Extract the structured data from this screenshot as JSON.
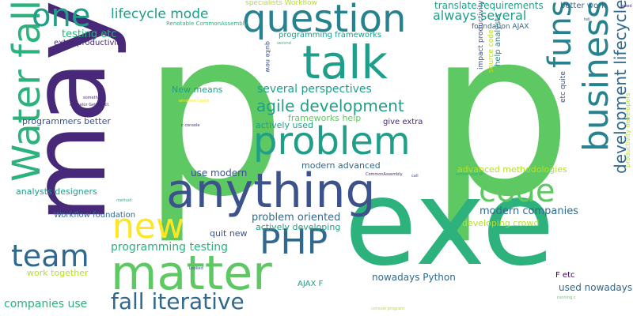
{
  "palette": [
    "#2db27d",
    "#26828e",
    "#3b528b",
    "#482878",
    "#440154",
    "#1f9e89",
    "#5ec962",
    "#b5de2b",
    "#fde725",
    "#31688e"
  ],
  "words": [
    {
      "text": "p",
      "color": "#5ec962",
      "size": 290
    },
    {
      "text": "p",
      "color": "#5ec962",
      "size": 290
    },
    {
      "text": "exe",
      "color": "#2db27d",
      "size": 150
    },
    {
      "text": "may",
      "color": "#482878",
      "size": 130
    },
    {
      "text": "anything",
      "color": "#3b528b",
      "size": 60
    },
    {
      "text": "matter",
      "color": "#5ec962",
      "size": 60
    },
    {
      "text": "question",
      "color": "#26828e",
      "size": 48
    },
    {
      "text": "talk",
      "color": "#1f9e89",
      "size": 58
    },
    {
      "text": "problem",
      "color": "#1f9e89",
      "size": 48
    },
    {
      "text": "Water fall",
      "color": "#2db27d",
      "size": 48
    },
    {
      "text": "business",
      "color": "#26828e",
      "size": 44
    },
    {
      "text": "one",
      "color": "#1f9e89",
      "size": 40
    },
    {
      "text": "funs",
      "color": "#26828e",
      "size": 40
    },
    {
      "text": "PHP",
      "color": "#31688e",
      "size": 44
    },
    {
      "text": "code",
      "color": "#5ec962",
      "size": 40
    },
    {
      "text": "new",
      "color": "#fde725",
      "size": 44
    },
    {
      "text": "team",
      "color": "#31688e",
      "size": 38
    },
    {
      "text": "fall iterative",
      "color": "#31688e",
      "size": 28
    },
    {
      "text": "development lifecycle",
      "color": "#31688e",
      "size": 20
    },
    {
      "text": "agile development",
      "color": "#1f9e89",
      "size": 20
    },
    {
      "text": "lifecycle mode",
      "color": "#1f9e89",
      "size": 17
    },
    {
      "text": "always several",
      "color": "#1f9e89",
      "size": 16
    },
    {
      "text": "several perspectives",
      "color": "#1f9e89",
      "size": 14
    },
    {
      "text": "programming testing",
      "color": "#2db27d",
      "size": 14
    },
    {
      "text": "problem oriented",
      "color": "#31688e",
      "size": 13
    },
    {
      "text": "modern companies",
      "color": "#31688e",
      "size": 13
    },
    {
      "text": "companies use",
      "color": "#2db27d",
      "size": 14
    },
    {
      "text": "nowadays Python",
      "color": "#31688e",
      "size": 12
    },
    {
      "text": "used nowadays",
      "color": "#31688e",
      "size": 12
    },
    {
      "text": "testing etc",
      "color": "#2db27d",
      "size": 13
    },
    {
      "text": "extra productivity",
      "color": "#482878",
      "size": 10
    },
    {
      "text": "programming frameworks",
      "color": "#1f9e89",
      "size": 10
    },
    {
      "text": "translate requirements",
      "color": "#1f9e89",
      "size": 12
    },
    {
      "text": "better work",
      "color": "#31688e",
      "size": 10
    },
    {
      "text": "foundation AJAX",
      "color": "#31688e",
      "size": 9
    },
    {
      "text": "specialists Workflow",
      "color": "#b5de2b",
      "size": 9
    },
    {
      "text": "Renotable CommonAssembly",
      "color": "#2db27d",
      "size": 7
    },
    {
      "text": "New means",
      "color": "#1f9e89",
      "size": 11
    },
    {
      "text": "programmers better",
      "color": "#3b528b",
      "size": 11
    },
    {
      "text": "actively used",
      "color": "#1f9e89",
      "size": 11
    },
    {
      "text": "frameworks help",
      "color": "#5ec962",
      "size": 11
    },
    {
      "text": "give extra",
      "color": "#482878",
      "size": 10
    },
    {
      "text": "use modern",
      "color": "#3b528b",
      "size": 12
    },
    {
      "text": "modern advanced",
      "color": "#31688e",
      "size": 11
    },
    {
      "text": "advanced methodologies",
      "color": "#b5de2b",
      "size": 11
    },
    {
      "text": "analysts designers",
      "color": "#1f9e89",
      "size": 11
    },
    {
      "text": "Workflow foundation",
      "color": "#31688e",
      "size": 10
    },
    {
      "text": "actively developing",
      "color": "#1f9e89",
      "size": 11
    },
    {
      "text": "quit new",
      "color": "#3b528b",
      "size": 11
    },
    {
      "text": "developing crowd",
      "color": "#b5de2b",
      "size": 11
    },
    {
      "text": "work together",
      "color": "#b5de2b",
      "size": 11
    },
    {
      "text": "AJAX F",
      "color": "#1f9e89",
      "size": 10
    },
    {
      "text": "F etc",
      "color": "#440154",
      "size": 10
    },
    {
      "text": "quite new",
      "color": "#3b528b",
      "size": 8
    },
    {
      "text": "impact productivity",
      "color": "#3b528b",
      "size": 9
    },
    {
      "text": "source code",
      "color": "#b5de2b",
      "size": 9
    },
    {
      "text": "help analysts",
      "color": "#26828e",
      "size": 10
    },
    {
      "text": "etc quite",
      "color": "#3b528b",
      "size": 9
    },
    {
      "text": "productivity developers",
      "color": "#b5de2b",
      "size": 8
    },
    {
      "text": "second",
      "color": "#2db27d",
      "size": 5
    },
    {
      "text": "something",
      "color": "#482878",
      "size": 5
    },
    {
      "text": "Activator GetObject",
      "color": "#482878",
      "size": 5
    },
    {
      "text": "windows typed",
      "color": "#fde725",
      "size": 5
    },
    {
      "text": "c console",
      "color": "#482878",
      "size": 5
    },
    {
      "text": "CommonAssembly",
      "color": "#482878",
      "size": 5
    },
    {
      "text": "call",
      "color": "#3b528b",
      "size": 5
    },
    {
      "text": "referenced dll",
      "color": "#2db27d",
      "size": 5
    },
    {
      "text": "tell",
      "color": "#3b528b",
      "size": 5
    },
    {
      "text": "Looked",
      "color": "#3b528b",
      "size": 5
    },
    {
      "text": "method",
      "color": "#2db27d",
      "size": 5
    },
    {
      "text": "running c",
      "color": "#5ec962",
      "size": 5
    },
    {
      "text": "console program",
      "color": "#b5de2b",
      "size": 5
    },
    {
      "text": "need",
      "color": "#482878",
      "size": 5
    }
  ]
}
